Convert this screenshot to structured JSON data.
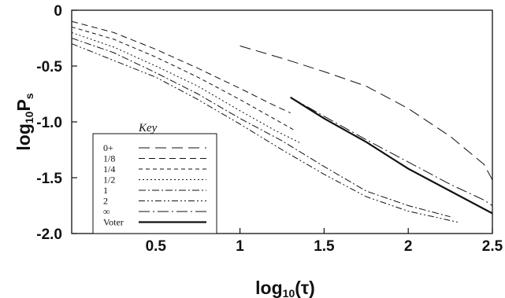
{
  "chart_data": {
    "type": "line",
    "xlabel": "log10(τ)",
    "ylabel": "log10Ps",
    "xlim": [
      0,
      2.5
    ],
    "ylim": [
      -2.0,
      0
    ],
    "x_ticks": [
      0.5,
      1,
      1.5,
      2,
      2.5
    ],
    "x_tick_labels": [
      "0.5",
      "1",
      "1.5",
      "2",
      "2.5"
    ],
    "y_ticks": [
      0,
      -0.5,
      -1.0,
      -1.5,
      -2.0
    ],
    "y_tick_labels": [
      "0",
      "-0.5",
      "-1.0",
      "-1.5",
      "-2.0"
    ],
    "grid": false,
    "legend": {
      "title": "Key",
      "position": "lower-left"
    },
    "series": [
      {
        "name": "0+",
        "style": "long-dash",
        "x": [
          1.0,
          1.25,
          1.5,
          1.75,
          2.0,
          2.25,
          2.45,
          2.5
        ],
        "y": [
          -0.32,
          -0.43,
          -0.55,
          -0.68,
          -0.88,
          -1.13,
          -1.38,
          -1.52
        ]
      },
      {
        "name": "1/8",
        "style": "dash",
        "x": [
          0.0,
          0.25,
          0.5,
          0.75,
          1.0,
          1.2,
          1.3
        ],
        "y": [
          -0.1,
          -0.2,
          -0.35,
          -0.52,
          -0.7,
          -0.85,
          -0.92
        ]
      },
      {
        "name": "1/4",
        "style": "short-dash",
        "x": [
          0.0,
          0.25,
          0.5,
          0.75,
          1.0,
          1.2,
          1.33
        ],
        "y": [
          -0.15,
          -0.26,
          -0.42,
          -0.6,
          -0.8,
          -0.97,
          -1.08
        ]
      },
      {
        "name": "1/2",
        "style": "dot",
        "x": [
          0.0,
          0.25,
          0.5,
          0.75,
          1.0,
          1.2,
          1.36
        ],
        "y": [
          -0.2,
          -0.33,
          -0.5,
          -0.68,
          -0.9,
          -1.07,
          -1.19
        ]
      },
      {
        "name": "1",
        "style": "dash-dot",
        "x": [
          0.0,
          0.25,
          0.5,
          0.75,
          1.0,
          1.25,
          1.5,
          1.75,
          2.0,
          2.25
        ],
        "y": [
          -0.25,
          -0.38,
          -0.56,
          -0.75,
          -0.97,
          -1.17,
          -1.4,
          -1.62,
          -1.75,
          -1.85
        ]
      },
      {
        "name": "2",
        "style": "dash-dot-dot",
        "x": [
          0.0,
          0.25,
          0.5,
          0.75,
          1.0,
          1.25,
          1.5,
          1.75,
          2.0,
          2.3
        ],
        "y": [
          -0.3,
          -0.45,
          -0.6,
          -0.8,
          -1.02,
          -1.25,
          -1.47,
          -1.67,
          -1.8,
          -1.9
        ]
      },
      {
        "name": "∞",
        "style": "long-dash-dot",
        "x": [
          1.3,
          1.5,
          1.75,
          2.0,
          2.25,
          2.45,
          2.5
        ],
        "y": [
          -0.78,
          -0.95,
          -1.16,
          -1.36,
          -1.56,
          -1.7,
          -1.75
        ]
      },
      {
        "name": "Voter",
        "style": "solid-thick",
        "x": [
          1.3,
          1.5,
          1.75,
          2.0,
          2.25,
          2.5
        ],
        "y": [
          -0.78,
          -0.97,
          -1.18,
          -1.42,
          -1.62,
          -1.82
        ]
      }
    ]
  }
}
